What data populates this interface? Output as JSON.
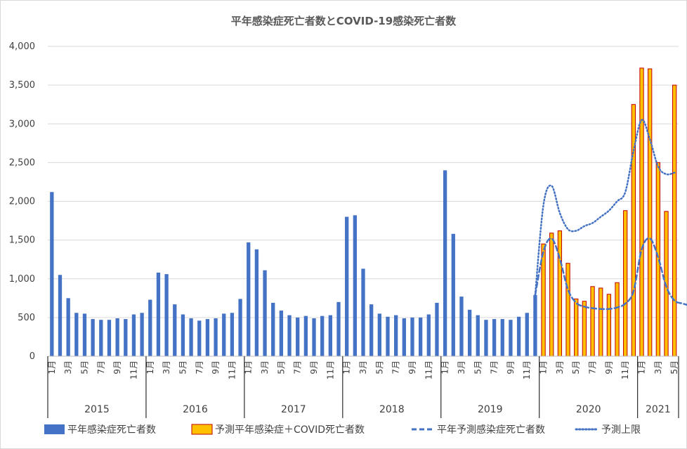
{
  "chart_data": {
    "type": "bar",
    "title": "平年感染症死亡者数とCOVID-19感染死亡者数",
    "xlabel": "",
    "ylabel": "",
    "ylim": [
      0,
      4000
    ],
    "yticks": [
      0,
      500,
      1000,
      1500,
      2000,
      2500,
      3000,
      3500,
      4000
    ],
    "ytick_labels": [
      "0",
      "500",
      "1,000",
      "1,500",
      "2,000",
      "2,500",
      "3,000",
      "3,500",
      "4,000"
    ],
    "grid": true,
    "legend_position": "bottom",
    "month_labels": [
      "1月",
      "3月",
      "5月",
      "7月",
      "9月",
      "11月"
    ],
    "years": [
      "2015",
      "2016",
      "2017",
      "2018",
      "2019",
      "2020",
      "2021"
    ],
    "months_per_year": [
      12,
      12,
      12,
      12,
      12,
      12,
      5
    ],
    "series": [
      {
        "name": "平年感染症死亡者数",
        "kind": "bar",
        "color": "#4472C4",
        "values": [
          2120,
          1050,
          750,
          560,
          550,
          480,
          470,
          470,
          490,
          480,
          540,
          560,
          730,
          1080,
          1060,
          670,
          540,
          490,
          460,
          480,
          490,
          550,
          560,
          740,
          1470,
          1380,
          1110,
          690,
          590,
          530,
          500,
          520,
          490,
          520,
          530,
          700,
          1800,
          1820,
          1130,
          670,
          550,
          510,
          530,
          490,
          500,
          500,
          540,
          690,
          2400,
          1580,
          770,
          600,
          530,
          470,
          480,
          480,
          470,
          510,
          560,
          790
        ]
      },
      {
        "name": "予測平年感染症＋COVID死亡者数",
        "kind": "bar",
        "color": "#FFC000",
        "edge": "#C00000",
        "values": [
          1450,
          1590,
          1620,
          1200,
          740,
          710,
          900,
          880,
          800,
          950,
          1880,
          3250,
          3720,
          3710,
          2500,
          1870,
          3500
        ]
      },
      {
        "name": "平年予測感染症死亡者数",
        "kind": "line",
        "style": "dashed",
        "color": "#4472C4",
        "x_start_index": 59,
        "values": [
          790,
          1350,
          1520,
          1260,
          860,
          690,
          640,
          620,
          610,
          610,
          630,
          680,
          840,
          1380,
          1520,
          1280,
          900,
          720,
          680,
          650
        ]
      },
      {
        "name": "予測上限",
        "kind": "line",
        "style": "dotted",
        "color": "#4472C4",
        "x_start_index": 59,
        "values": [
          790,
          1950,
          2200,
          1850,
          1640,
          1620,
          1680,
          1720,
          1800,
          1880,
          2000,
          2120,
          2650,
          3050,
          2800,
          2450,
          2350,
          2370
        ]
      }
    ]
  }
}
